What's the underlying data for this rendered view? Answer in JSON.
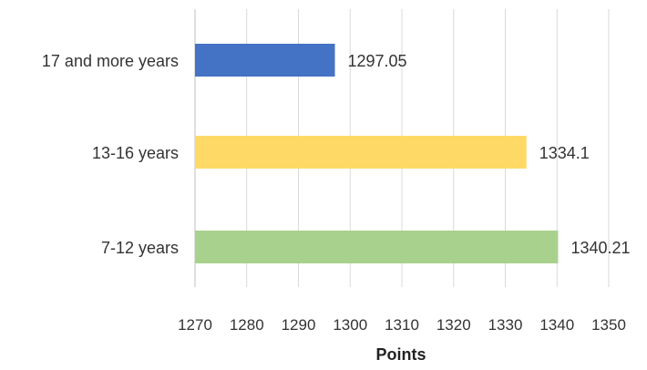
{
  "chart_data": {
    "type": "bar",
    "orientation": "horizontal",
    "categories": [
      "17 and more years",
      "13-16 years",
      "7-12 years"
    ],
    "values": [
      1297.05,
      1334.1,
      1340.21
    ],
    "value_labels": [
      "1297.05",
      "1334.1",
      "1340.21"
    ],
    "colors": [
      "#4472C4",
      "#FFD966",
      "#A9D18E"
    ],
    "xlabel": "Points",
    "ylabel": "",
    "xlim": [
      1270,
      1350
    ],
    "xticks": [
      1270,
      1280,
      1290,
      1300,
      1310,
      1320,
      1330,
      1340,
      1350
    ],
    "grid": true
  }
}
